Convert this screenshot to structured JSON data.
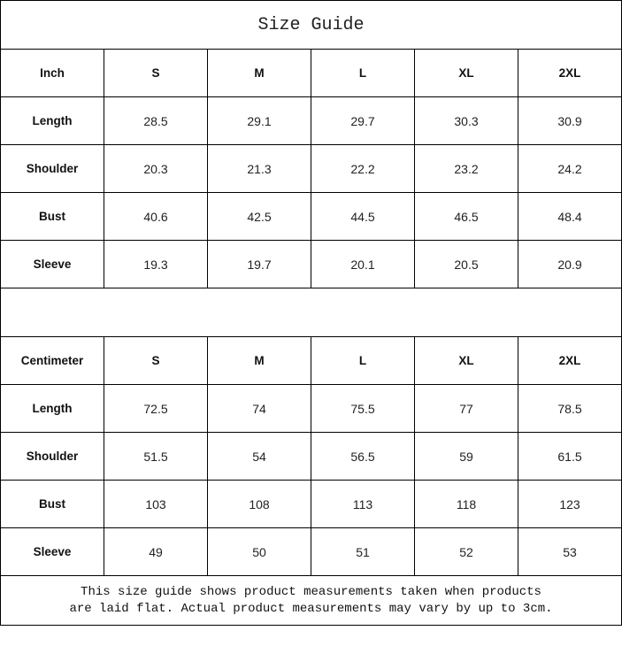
{
  "title": "Size Guide",
  "inch_table": {
    "header": [
      "Inch",
      "S",
      "M",
      "L",
      "XL",
      "2XL"
    ],
    "rows": [
      {
        "label": "Length",
        "values": [
          "28.5",
          "29.1",
          "29.7",
          "30.3",
          "30.9"
        ]
      },
      {
        "label": "Shoulder",
        "values": [
          "20.3",
          "21.3",
          "22.2",
          "23.2",
          "24.2"
        ]
      },
      {
        "label": "Bust",
        "values": [
          "40.6",
          "42.5",
          "44.5",
          "46.5",
          "48.4"
        ]
      },
      {
        "label": "Sleeve",
        "values": [
          "19.3",
          "19.7",
          "20.1",
          "20.5",
          "20.9"
        ]
      }
    ]
  },
  "cm_table": {
    "header": [
      "Centimeter",
      "S",
      "M",
      "L",
      "XL",
      "2XL"
    ],
    "rows": [
      {
        "label": "Length",
        "values": [
          "72.5",
          "74",
          "75.5",
          "77",
          "78.5"
        ]
      },
      {
        "label": "Shoulder",
        "values": [
          "51.5",
          "54",
          "56.5",
          "59",
          "61.5"
        ]
      },
      {
        "label": "Bust",
        "values": [
          "103",
          "108",
          "113",
          "118",
          "123"
        ]
      },
      {
        "label": "Sleeve",
        "values": [
          "49",
          "50",
          "51",
          "52",
          "53"
        ]
      }
    ]
  },
  "note": {
    "line1": "This size guide shows product measurements taken when products",
    "line2": "are laid flat. Actual product measurements may vary by up to 3cm."
  }
}
